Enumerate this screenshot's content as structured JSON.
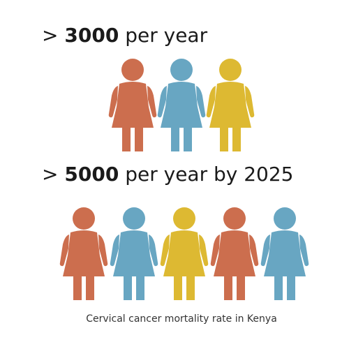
{
  "section1": {
    "prefix": "> ",
    "number": "3000",
    "suffix": " per year",
    "figures": [
      "orange",
      "blue",
      "yellow"
    ]
  },
  "section2": {
    "prefix": "> ",
    "number": "5000",
    "suffix": " per year by 2025",
    "figures": [
      "orange",
      "blue",
      "yellow",
      "orange",
      "blue"
    ]
  },
  "caption": "Cervical cancer mortality rate in Kenya",
  "colors": {
    "orange": "#CC6E4E",
    "blue": "#68A6C2",
    "yellow": "#DDB932"
  },
  "icon": "woman-figure-icon"
}
